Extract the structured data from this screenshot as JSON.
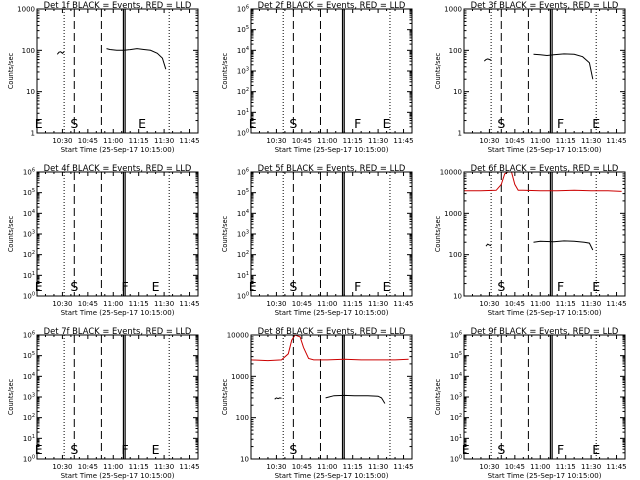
{
  "figure": {
    "background": "#ffffff"
  },
  "chart_data": [
    {
      "panel": "det1f",
      "type": "line",
      "title": "Det 1f BLACK = Events, RED = LLD",
      "xlabel": "Start Time (25-Sep-17 10:15:00)",
      "ylabel": "Counts/sec",
      "y_scale": "log",
      "ylim": [
        1,
        1000
      ],
      "yticks": [
        "1",
        "10",
        "100",
        "1000"
      ],
      "xticks": [
        "10:30",
        "10:45",
        "11:00",
        "11:15",
        "11:30",
        "11:45"
      ],
      "markers": [
        {
          "text": "E",
          "t": "10:16"
        },
        {
          "text": "S",
          "t": "10:37"
        },
        {
          "text": "E",
          "t": "11:17"
        }
      ],
      "vlines": [
        {
          "t": "10:31",
          "style": "dotted"
        },
        {
          "t": "10:37",
          "style": "dashed"
        },
        {
          "t": "10:53",
          "style": "dashed"
        },
        {
          "t": "11:06",
          "style": "solid"
        },
        {
          "t": "11:07",
          "style": "solid"
        },
        {
          "t": "11:33",
          "style": "dotted"
        }
      ],
      "series": [
        {
          "color": "#000000",
          "points": [
            [
              "10:27",
              80
            ],
            [
              "10:28",
              90
            ],
            [
              "10:29",
              92
            ],
            [
              "10:30",
              85
            ],
            [
              "10:31",
              92
            ]
          ]
        },
        {
          "color": "#000000",
          "points": [
            [
              "10:56",
              110
            ],
            [
              "10:58",
              105
            ],
            [
              "11:02",
              100
            ],
            [
              "11:06",
              100
            ],
            [
              "11:10",
              104
            ],
            [
              "11:14",
              110
            ],
            [
              "11:18",
              105
            ],
            [
              "11:22",
              100
            ],
            [
              "11:26",
              85
            ],
            [
              "11:29",
              65
            ],
            [
              "11:31",
              35
            ]
          ]
        }
      ]
    },
    {
      "panel": "det2f",
      "type": "line",
      "title": "Det 2f BLACK = Events, RED = LLD",
      "xlabel": "Start Time (25-Sep-17 10:15:00)",
      "ylabel": "Counts/sec",
      "y_scale": "log",
      "ylim": [
        1,
        1000000
      ],
      "yticks": [
        "10^0",
        "10^1",
        "10^2",
        "10^3",
        "10^4",
        "10^5",
        "10^6"
      ],
      "xticks": [
        "10:30",
        "10:45",
        "11:00",
        "11:15",
        "11:30",
        "11:45"
      ],
      "markers": [
        {
          "text": "E",
          "t": "10:16"
        },
        {
          "text": "S",
          "t": "10:40"
        },
        {
          "text": "F",
          "t": "11:18"
        },
        {
          "text": "E",
          "t": "11:35"
        }
      ],
      "vlines": [
        {
          "t": "10:34",
          "style": "dotted"
        },
        {
          "t": "10:40",
          "style": "dashed"
        },
        {
          "t": "10:56",
          "style": "dashed"
        },
        {
          "t": "11:09",
          "style": "solid"
        },
        {
          "t": "11:10",
          "style": "solid"
        },
        {
          "t": "11:37",
          "style": "dotted"
        }
      ],
      "series": []
    },
    {
      "panel": "det3f",
      "type": "line",
      "title": "Det 3f BLACK = Events, RED = LLD",
      "xlabel": "Start Time (25-Sep-17 10:15:00)",
      "ylabel": "Counts/sec",
      "y_scale": "log",
      "ylim": [
        1,
        1000
      ],
      "yticks": [
        "1",
        "10",
        "100",
        "1000"
      ],
      "xticks": [
        "10:30",
        "10:45",
        "11:00",
        "11:15",
        "11:30",
        "11:45"
      ],
      "markers": [
        {
          "text": "S",
          "t": "10:37"
        },
        {
          "text": "F",
          "t": "11:12"
        },
        {
          "text": "E",
          "t": "11:33"
        }
      ],
      "vlines": [
        {
          "t": "10:31",
          "style": "dotted"
        },
        {
          "t": "10:37",
          "style": "dashed"
        },
        {
          "t": "10:53",
          "style": "dashed"
        },
        {
          "t": "11:06",
          "style": "solid"
        },
        {
          "t": "11:07",
          "style": "solid"
        },
        {
          "t": "11:33",
          "style": "dotted"
        }
      ],
      "series": [
        {
          "color": "#000000",
          "points": [
            [
              "10:27",
              55
            ],
            [
              "10:28",
              60
            ],
            [
              "10:29",
              62
            ],
            [
              "10:30",
              60
            ],
            [
              "10:31",
              58
            ]
          ]
        },
        {
          "color": "#000000",
          "points": [
            [
              "10:56",
              80
            ],
            [
              "11:00",
              78
            ],
            [
              "11:04",
              75
            ],
            [
              "11:08",
              78
            ],
            [
              "11:14",
              82
            ],
            [
              "11:20",
              80
            ],
            [
              "11:25",
              70
            ],
            [
              "11:29",
              50
            ],
            [
              "11:31",
              20
            ]
          ]
        }
      ]
    },
    {
      "panel": "det4f",
      "type": "line",
      "title": "Det 4f BLACK = Events, RED = LLD",
      "xlabel": "Start Time (25-Sep-17 10:15:00)",
      "ylabel": "Counts/sec",
      "y_scale": "log",
      "ylim": [
        1,
        1000000
      ],
      "yticks": [
        "10^0",
        "10^1",
        "10^2",
        "10^3",
        "10^4",
        "10^5",
        "10^6"
      ],
      "xticks": [
        "10:30",
        "10:45",
        "11:00",
        "11:15",
        "11:30",
        "11:45"
      ],
      "markers": [
        {
          "text": "E",
          "t": "10:16"
        },
        {
          "text": "S",
          "t": "10:37"
        },
        {
          "text": "F",
          "t": "11:07"
        },
        {
          "text": "E",
          "t": "11:25"
        }
      ],
      "vlines": [
        {
          "t": "10:31",
          "style": "dotted"
        },
        {
          "t": "10:37",
          "style": "dashed"
        },
        {
          "t": "10:53",
          "style": "dashed"
        },
        {
          "t": "11:06",
          "style": "solid"
        },
        {
          "t": "11:07",
          "style": "solid"
        },
        {
          "t": "11:33",
          "style": "dotted"
        }
      ],
      "series": []
    },
    {
      "panel": "det5f",
      "type": "line",
      "title": "Det 5f BLACK = Events, RED = LLD",
      "xlabel": "Start Time (25-Sep-17 10:15:00)",
      "ylabel": "Counts/sec",
      "y_scale": "log",
      "ylim": [
        1,
        1000000
      ],
      "yticks": [
        "10^0",
        "10^1",
        "10^2",
        "10^3",
        "10^4",
        "10^5",
        "10^6"
      ],
      "xticks": [
        "10:30",
        "10:45",
        "11:00",
        "11:15",
        "11:30",
        "11:45"
      ],
      "markers": [
        {
          "text": "E",
          "t": "10:16"
        },
        {
          "text": "S",
          "t": "10:40"
        },
        {
          "text": "F",
          "t": "11:18"
        },
        {
          "text": "E",
          "t": "11:35"
        }
      ],
      "vlines": [
        {
          "t": "10:34",
          "style": "dotted"
        },
        {
          "t": "10:40",
          "style": "dashed"
        },
        {
          "t": "10:56",
          "style": "dashed"
        },
        {
          "t": "11:09",
          "style": "solid"
        },
        {
          "t": "11:10",
          "style": "solid"
        },
        {
          "t": "11:37",
          "style": "dotted"
        }
      ],
      "series": []
    },
    {
      "panel": "det6f",
      "type": "line",
      "title": "Det 6f BLACK = Events, RED = LLD",
      "xlabel": "Start Time (25-Sep-17 10:15:00)",
      "ylabel": "Counts/sec",
      "y_scale": "log",
      "ylim": [
        10,
        10000
      ],
      "yticks": [
        "10",
        "100",
        "1000",
        "10000"
      ],
      "xticks": [
        "10:30",
        "10:45",
        "11:00",
        "11:15",
        "11:30",
        "11:45"
      ],
      "markers": [
        {
          "text": "S",
          "t": "10:37"
        },
        {
          "text": "F",
          "t": "11:12"
        },
        {
          "text": "E",
          "t": "11:33"
        }
      ],
      "vlines": [
        {
          "t": "10:31",
          "style": "dotted"
        },
        {
          "t": "10:37",
          "style": "dashed"
        },
        {
          "t": "10:53",
          "style": "dashed"
        },
        {
          "t": "11:06",
          "style": "solid"
        },
        {
          "t": "11:07",
          "style": "solid"
        },
        {
          "t": "11:33",
          "style": "dotted"
        }
      ],
      "series": [
        {
          "color": "#cc0000",
          "points": [
            [
              "10:15",
              3500
            ],
            [
              "10:25",
              3500
            ],
            [
              "10:34",
              3600
            ],
            [
              "10:37",
              5000
            ],
            [
              "10:39",
              9000
            ],
            [
              "10:41",
              11000
            ],
            [
              "10:43",
              10500
            ],
            [
              "10:45",
              5000
            ],
            [
              "10:47",
              3600
            ],
            [
              "10:50",
              3600
            ],
            [
              "11:00",
              3500
            ],
            [
              "11:10",
              3500
            ],
            [
              "11:20",
              3600
            ],
            [
              "11:30",
              3500
            ],
            [
              "11:40",
              3500
            ],
            [
              "11:48",
              3400
            ]
          ]
        },
        {
          "color": "#000000",
          "points": [
            [
              "10:28",
              160
            ],
            [
              "10:29",
              180
            ],
            [
              "10:30",
              170
            ],
            [
              "10:31",
              165
            ]
          ]
        },
        {
          "color": "#000000",
          "points": [
            [
              "10:56",
              200
            ],
            [
              "11:00",
              210
            ],
            [
              "11:08",
              205
            ],
            [
              "11:14",
              215
            ],
            [
              "11:20",
              210
            ],
            [
              "11:26",
              200
            ],
            [
              "11:29",
              190
            ],
            [
              "11:31",
              130
            ]
          ]
        }
      ]
    },
    {
      "panel": "det7f",
      "type": "line",
      "title": "Det 7f BLACK = Events, RED = LLD",
      "xlabel": "Start Time (25-Sep-17 10:15:00)",
      "ylabel": "Counts/sec",
      "y_scale": "log",
      "ylim": [
        1,
        1000000
      ],
      "yticks": [
        "10^0",
        "10^1",
        "10^2",
        "10^3",
        "10^4",
        "10^5",
        "10^6"
      ],
      "xticks": [
        "10:30",
        "10:45",
        "11:00",
        "11:15",
        "11:30",
        "11:45"
      ],
      "markers": [
        {
          "text": "E",
          "t": "10:16"
        },
        {
          "text": "S",
          "t": "10:37"
        },
        {
          "text": "F",
          "t": "11:07"
        },
        {
          "text": "E",
          "t": "11:25"
        }
      ],
      "vlines": [
        {
          "t": "10:31",
          "style": "dotted"
        },
        {
          "t": "10:37",
          "style": "dashed"
        },
        {
          "t": "10:53",
          "style": "dashed"
        },
        {
          "t": "11:06",
          "style": "solid"
        },
        {
          "t": "11:07",
          "style": "solid"
        },
        {
          "t": "11:33",
          "style": "dotted"
        }
      ],
      "series": []
    },
    {
      "panel": "det8f",
      "type": "line",
      "title": "Det 8f BLACK = Events, RED = LLD",
      "xlabel": "Start Time (25-Sep-17 10:15:00)",
      "ylabel": "Counts/sec",
      "y_scale": "log",
      "ylim": [
        10,
        10000
      ],
      "yticks": [
        "10",
        "100",
        "1000",
        "10000"
      ],
      "xticks": [
        "10:30",
        "10:45",
        "11:00",
        "11:15",
        "11:30",
        "11:45"
      ],
      "markers": [
        {
          "text": "S",
          "t": "10:40"
        }
      ],
      "vlines": [
        {
          "t": "10:34",
          "style": "dotted"
        },
        {
          "t": "10:40",
          "style": "dashed"
        },
        {
          "t": "10:56",
          "style": "dashed"
        },
        {
          "t": "11:09",
          "style": "solid"
        },
        {
          "t": "11:10",
          "style": "solid"
        },
        {
          "t": "11:37",
          "style": "dotted"
        }
      ],
      "series": [
        {
          "color": "#cc0000",
          "points": [
            [
              "10:15",
              2500
            ],
            [
              "10:25",
              2400
            ],
            [
              "10:33",
              2500
            ],
            [
              "10:37",
              3500
            ],
            [
              "10:39",
              7500
            ],
            [
              "10:41",
              10000
            ],
            [
              "10:44",
              9000
            ],
            [
              "10:46",
              5000
            ],
            [
              "10:49",
              2700
            ],
            [
              "10:52",
              2500
            ],
            [
              "11:00",
              2500
            ],
            [
              "11:10",
              2600
            ],
            [
              "11:20",
              2500
            ],
            [
              "11:30",
              2500
            ],
            [
              "11:40",
              2500
            ],
            [
              "11:48",
              2600
            ]
          ]
        },
        {
          "color": "#000000",
          "points": [
            [
              "10:29",
              280
            ],
            [
              "10:30",
              300
            ],
            [
              "10:31",
              290
            ],
            [
              "10:32",
              300
            ],
            [
              "10:33",
              295
            ]
          ]
        },
        {
          "color": "#000000",
          "points": [
            [
              "10:59",
              300
            ],
            [
              "11:04",
              340
            ],
            [
              "11:10",
              345
            ],
            [
              "11:16",
              340
            ],
            [
              "11:24",
              340
            ],
            [
              "11:30",
              330
            ],
            [
              "11:32",
              300
            ],
            [
              "11:34",
              220
            ]
          ]
        }
      ]
    },
    {
      "panel": "det9f",
      "type": "line",
      "title": "Det 9f BLACK = Events, RED = LLD",
      "xlabel": "Start Time (25-Sep-17 10:15:00)",
      "ylabel": "Counts/sec",
      "y_scale": "log",
      "ylim": [
        1,
        1000000
      ],
      "yticks": [
        "10^0",
        "10^1",
        "10^2",
        "10^3",
        "10^4",
        "10^5",
        "10^6"
      ],
      "xticks": [
        "10:30",
        "10:45",
        "11:00",
        "11:15",
        "11:30",
        "11:45"
      ],
      "markers": [
        {
          "text": "E",
          "t": "10:16"
        },
        {
          "text": "S",
          "t": "10:37"
        },
        {
          "text": "F",
          "t": "11:12"
        },
        {
          "text": "E",
          "t": "11:33"
        }
      ],
      "vlines": [
        {
          "t": "10:31",
          "style": "dotted"
        },
        {
          "t": "10:37",
          "style": "dashed"
        },
        {
          "t": "10:53",
          "style": "dashed"
        },
        {
          "t": "11:06",
          "style": "solid"
        },
        {
          "t": "11:07",
          "style": "solid"
        },
        {
          "t": "11:33",
          "style": "dotted"
        }
      ],
      "series": []
    }
  ]
}
